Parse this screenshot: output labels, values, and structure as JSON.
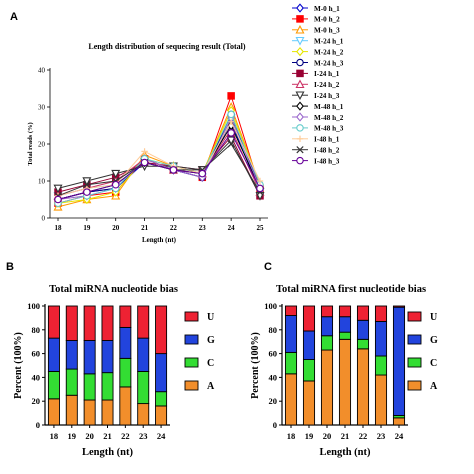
{
  "chart_data": [
    {
      "panel": "A",
      "type": "line",
      "title": "Length distribution of sequecing result (Total)",
      "xlabel": "Length (nt)",
      "ylabel": "Total reads (%)",
      "x": [
        18,
        19,
        20,
        21,
        22,
        23,
        24,
        25
      ],
      "ylim": [
        0,
        40
      ],
      "yticks": [
        0,
        10,
        20,
        30,
        40
      ],
      "legend_position": "right",
      "series": [
        {
          "name": "M-0 h_1",
          "color": "#0000cc",
          "marker": "diamond",
          "values": [
            5,
            7,
            8,
            15,
            13,
            11,
            26,
            7
          ]
        },
        {
          "name": "M-0 h_2",
          "color": "#ff0000",
          "marker": "square",
          "values": [
            4,
            6,
            7,
            16,
            13,
            11,
            33,
            8
          ]
        },
        {
          "name": "M-0 h_3",
          "color": "#ff9900",
          "marker": "triangle-up",
          "values": [
            3,
            5,
            6,
            17,
            14,
            12,
            30,
            9
          ]
        },
        {
          "name": "M-24 h_1",
          "color": "#66ccff",
          "marker": "triangle-down",
          "values": [
            6,
            8,
            9,
            15,
            13,
            11,
            27,
            7
          ]
        },
        {
          "name": "M-24 h_2",
          "color": "#e6e600",
          "marker": "diamond",
          "values": [
            4,
            5,
            7,
            16,
            14,
            12,
            29,
            9
          ]
        },
        {
          "name": "M-24 h_3",
          "color": "#000080",
          "marker": "circle",
          "values": [
            5,
            7,
            8,
            16,
            13,
            11,
            28,
            8
          ]
        },
        {
          "name": "I-24 h_1",
          "color": "#990033",
          "marker": "square",
          "values": [
            7,
            9,
            11,
            15,
            14,
            13,
            22,
            6
          ]
        },
        {
          "name": "I-24 h_2",
          "color": "#cc3366",
          "marker": "triangle-up",
          "values": [
            6,
            8,
            10,
            16,
            13,
            12,
            24,
            7
          ]
        },
        {
          "name": "I-24 h_3",
          "color": "#333333",
          "marker": "triangle-down",
          "values": [
            8,
            10,
            12,
            14,
            14,
            13,
            21,
            6
          ]
        },
        {
          "name": "M-48 h_1",
          "color": "#000000",
          "marker": "diamond",
          "values": [
            5,
            7,
            9,
            15,
            13,
            12,
            25,
            8
          ]
        },
        {
          "name": "M-48 h_2",
          "color": "#9966cc",
          "marker": "diamond",
          "values": [
            5,
            6,
            8,
            16,
            13,
            11,
            27,
            8
          ]
        },
        {
          "name": "M-48 h_3",
          "color": "#66cccc",
          "marker": "circle",
          "values": [
            4,
            6,
            8,
            16,
            14,
            12,
            28,
            9
          ]
        },
        {
          "name": "I-48 h_1",
          "color": "#ffcc99",
          "marker": "plus",
          "values": [
            6,
            8,
            9,
            18,
            14,
            12,
            26,
            10
          ]
        },
        {
          "name": "I-48 h_2",
          "color": "#333333",
          "marker": "x",
          "values": [
            6,
            9,
            10,
            15,
            13,
            13,
            20,
            7
          ]
        },
        {
          "name": "I-48 h_3",
          "color": "#660099",
          "marker": "circle",
          "values": [
            5,
            7,
            9,
            15,
            13,
            12,
            23,
            8
          ]
        }
      ]
    },
    {
      "panel": "B",
      "type": "bar",
      "stacked": true,
      "title": "Total miRNA nucleotide bias",
      "xlabel": "Length (nt)",
      "ylabel": "Percent (100%)",
      "categories": [
        "18",
        "19",
        "20",
        "21",
        "22",
        "23",
        "24"
      ],
      "ylim": [
        0,
        100
      ],
      "yticks": [
        0,
        20,
        40,
        60,
        80,
        100
      ],
      "legend_position": "right",
      "series": [
        {
          "name": "A",
          "color": "#f28e2b",
          "values": [
            22,
            25,
            21,
            21,
            32,
            18,
            16
          ]
        },
        {
          "name": "C",
          "color": "#33dd33",
          "values": [
            23,
            22,
            22,
            23,
            24,
            27,
            12
          ]
        },
        {
          "name": "G",
          "color": "#2244dd",
          "values": [
            28,
            24,
            28,
            27,
            26,
            28,
            32
          ]
        },
        {
          "name": "U",
          "color": "#ee2233",
          "values": [
            27,
            29,
            29,
            29,
            18,
            27,
            40
          ]
        }
      ]
    },
    {
      "panel": "C",
      "type": "bar",
      "stacked": true,
      "title": "Total miRNA first nucleotide bias",
      "xlabel": "Length (nt)",
      "ylabel": "Percent (100%)",
      "categories": [
        "18",
        "19",
        "20",
        "21",
        "22",
        "23",
        "24"
      ],
      "ylim": [
        0,
        100
      ],
      "yticks": [
        0,
        20,
        40,
        60,
        80,
        100
      ],
      "legend_position": "right",
      "series": [
        {
          "name": "A",
          "color": "#f28e2b",
          "values": [
            43,
            37,
            63,
            72,
            64,
            42,
            6
          ]
        },
        {
          "name": "C",
          "color": "#33dd33",
          "values": [
            18,
            18,
            12,
            6,
            8,
            16,
            2
          ]
        },
        {
          "name": "G",
          "color": "#2244dd",
          "values": [
            31,
            24,
            16,
            13,
            16,
            29,
            91
          ]
        },
        {
          "name": "U",
          "color": "#ee2233",
          "values": [
            8,
            21,
            9,
            9,
            12,
            13,
            1
          ]
        }
      ]
    }
  ]
}
